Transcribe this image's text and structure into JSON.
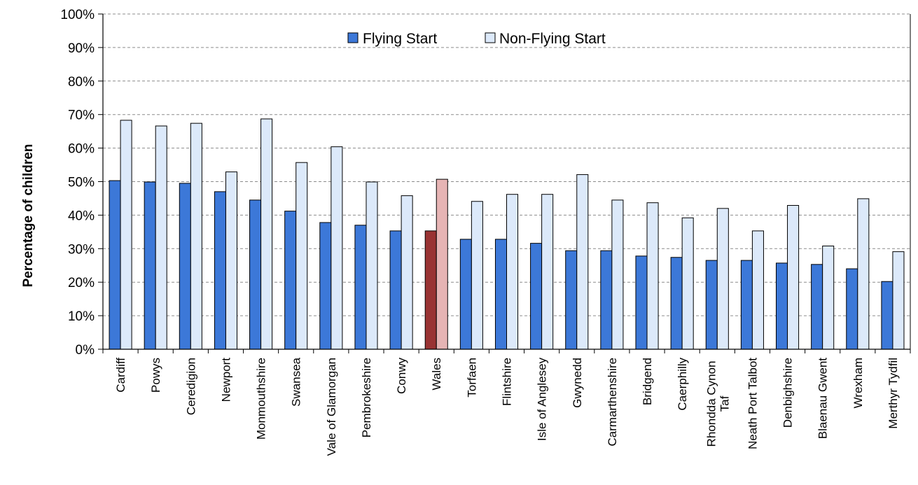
{
  "chart_data": {
    "type": "bar",
    "title": "",
    "xlabel": "",
    "ylabel": "Percentage of children",
    "ylim": [
      0,
      100
    ],
    "yticks": [
      "0%",
      "10%",
      "20%",
      "30%",
      "40%",
      "50%",
      "60%",
      "70%",
      "80%",
      "90%",
      "100%"
    ],
    "grid": true,
    "legend_position": "top-center",
    "categories": [
      [
        "Cardiff"
      ],
      [
        "Powys"
      ],
      [
        "Ceredigion"
      ],
      [
        "Newport"
      ],
      [
        "Monmouthshire"
      ],
      [
        "Swansea"
      ],
      [
        "Vale of Glamorgan"
      ],
      [
        "Pembrokeshire"
      ],
      [
        "Conwy"
      ],
      [
        "Wales"
      ],
      [
        "Torfaen"
      ],
      [
        "Flintshire"
      ],
      [
        "Isle of Anglesey"
      ],
      [
        "Gwynedd"
      ],
      [
        "Carmarthenshire"
      ],
      [
        "Bridgend"
      ],
      [
        "Caerphilly"
      ],
      [
        "Rhondda Cynon",
        "Taf"
      ],
      [
        "Neath Port Talbot"
      ],
      [
        "Denbighshire"
      ],
      [
        "Blaenau Gwent"
      ],
      [
        "Wrexham"
      ],
      [
        "Merthyr Tydfil"
      ]
    ],
    "highlight_category": "Wales",
    "series": [
      {
        "name": "Flying Start",
        "color": "#3c78d8",
        "highlight_color": "#993333",
        "values": [
          50.3,
          49.9,
          49.5,
          47.0,
          44.5,
          41.2,
          37.8,
          37.0,
          35.3,
          35.3,
          32.8,
          32.8,
          31.6,
          29.4,
          29.4,
          27.8,
          27.4,
          26.5,
          26.5,
          25.7,
          25.3,
          24.0,
          20.2
        ]
      },
      {
        "name": "Non-Flying Start",
        "color": "#dce9fa",
        "highlight_color": "#e6b4b4",
        "values": [
          68.3,
          66.6,
          67.4,
          52.9,
          68.7,
          55.7,
          60.4,
          49.9,
          45.8,
          50.7,
          44.1,
          46.2,
          46.2,
          52.1,
          44.5,
          43.7,
          39.2,
          42.0,
          35.3,
          42.9,
          30.8,
          44.9,
          29.1
        ]
      }
    ]
  }
}
